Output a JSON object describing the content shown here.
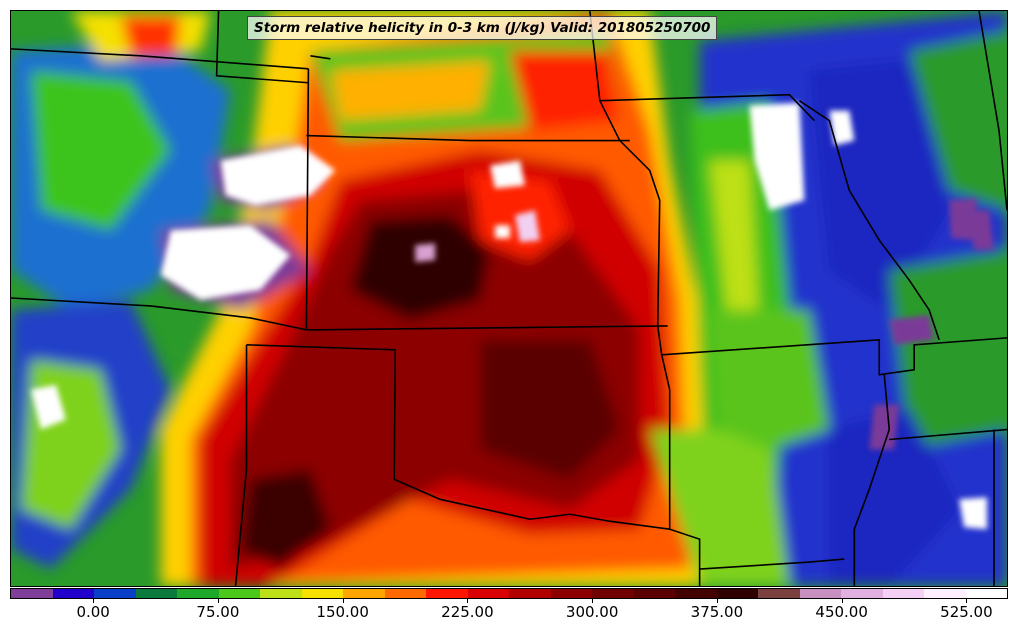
{
  "title": "Storm relative helicity in 0-3 km (J/kg) Valid: 201805250700",
  "colorbar": {
    "colors": [
      "#7f3f98",
      "#2200cc",
      "#0a40c8",
      "#0c7a3c",
      "#1ea82a",
      "#4cc81c",
      "#bde019",
      "#f5e000",
      "#ffa500",
      "#ff6a00",
      "#ff1500",
      "#d80000",
      "#b00000",
      "#8c0000",
      "#700000",
      "#5a0000",
      "#430000",
      "#2e0000",
      "#7a4040",
      "#c890c0",
      "#e0b0e0",
      "#f5d0f5",
      "#fff0ff",
      "#ffffff"
    ],
    "tick_values": [
      "0.00",
      "75.00",
      "150.00",
      "225.00",
      "300.00",
      "375.00",
      "450.00",
      "525.00"
    ]
  }
}
